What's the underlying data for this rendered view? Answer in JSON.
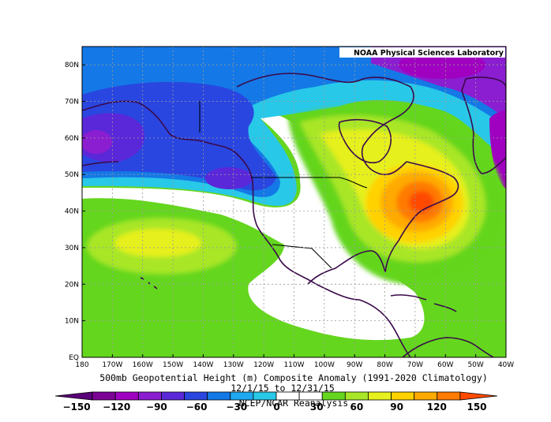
{
  "credit": "NOAA Physical Sciences Laboratory",
  "title": "500mb Geopotential Height (m) Composite Anomaly (1991-2020 Climatology)",
  "date_range": "12/1/15 to 12/31/15",
  "source": "NCEP/NCAR Reanalysis",
  "map_extent": {
    "lon": [
      -180,
      -40
    ],
    "lat": [
      0,
      85
    ]
  },
  "lat_ticks": [
    "80N",
    "70N",
    "60N",
    "50N",
    "40N",
    "30N",
    "20N",
    "10N",
    "EQ"
  ],
  "lon_ticks": [
    "180",
    "170W",
    "160W",
    "150W",
    "140W",
    "130W",
    "120W",
    "110W",
    "100W",
    "90W",
    "80W",
    "70W",
    "60W",
    "50W",
    "40W"
  ],
  "colorbar": {
    "labels": [
      "-150",
      "-120",
      "-90",
      "-60",
      "-30",
      "0",
      "30",
      "60",
      "90",
      "120",
      "150"
    ],
    "colors": [
      "#5a007a",
      "#7d0096",
      "#a000c0",
      "#8a1ed0",
      "#5a28d8",
      "#2a46e0",
      "#1478e6",
      "#1ea8f0",
      "#28c8e8",
      "#ffffff",
      "#ffffff",
      "#64d61e",
      "#a8e628",
      "#e6f01e",
      "#ffd200",
      "#ffaa00",
      "#ff7a00",
      "#ff4a00"
    ]
  },
  "chart_data": {
    "type": "heatmap",
    "title": "500mb Geopotential Height (m) Composite Anomaly (1991-2020 Climatology)",
    "xlabel": "",
    "ylabel": "",
    "features": [
      {
        "region": "northeastern United States / western Atlantic",
        "anomaly_m": 150,
        "sign": "positive"
      },
      {
        "region": "northeast Pacific / Pacific Northwest",
        "anomaly_m": -60,
        "sign": "negative"
      },
      {
        "region": "Alaska / Bering Sea",
        "anomaly_m": -90,
        "sign": "negative"
      },
      {
        "region": "Arctic north of Greenland",
        "anomaly_m": -120,
        "sign": "negative"
      },
      {
        "region": "subtropical central Pacific",
        "anomaly_m": 60,
        "sign": "positive"
      }
    ]
  }
}
